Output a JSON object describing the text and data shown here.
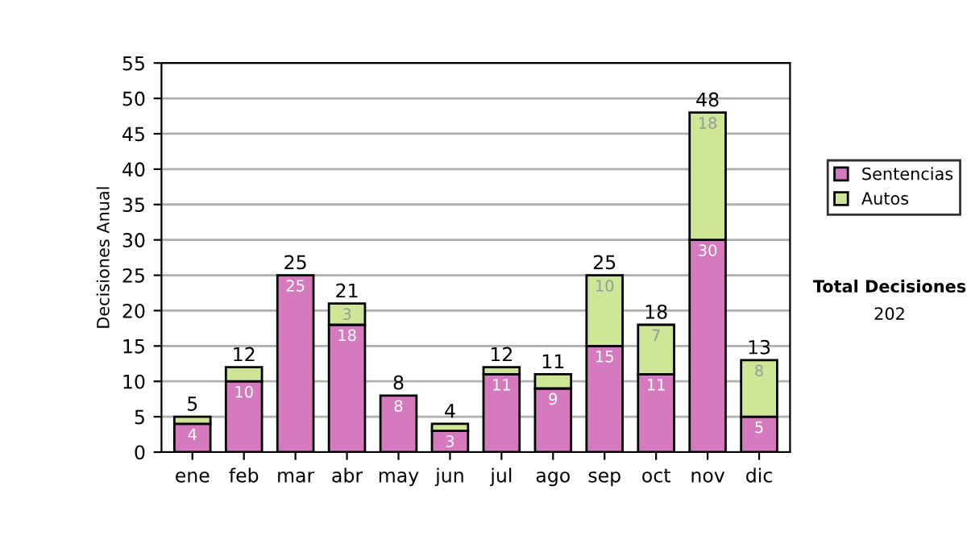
{
  "chart_data": {
    "type": "bar",
    "ylabel": "Decisiones Anual",
    "stacked": true,
    "categories": [
      "ene",
      "feb",
      "mar",
      "abr",
      "may",
      "jun",
      "jul",
      "ago",
      "sep",
      "oct",
      "nov",
      "dic"
    ],
    "series": [
      {
        "name": "Sentencias",
        "color": "#d67ac0",
        "values": [
          4,
          10,
          25,
          18,
          8,
          3,
          11,
          9,
          15,
          11,
          30,
          5
        ],
        "value_labels": [
          "4",
          "10",
          "25",
          "18",
          "8",
          "3",
          "11",
          "9",
          "15",
          "11",
          "30",
          "5"
        ]
      },
      {
        "name": "Autos",
        "color": "#cfe597",
        "values": [
          1,
          2,
          0,
          3,
          0,
          1,
          1,
          2,
          10,
          7,
          18,
          8
        ],
        "value_labels": [
          null,
          null,
          null,
          "3",
          null,
          null,
          null,
          null,
          "10",
          "7",
          "18",
          "8"
        ]
      }
    ],
    "totals": [
      "5",
      "12",
      "25",
      "21",
      "8",
      "4",
      "12",
      "11",
      "25",
      "18",
      "48",
      "13"
    ],
    "ylim": [
      0,
      55
    ],
    "yticks": [
      0,
      5,
      10,
      15,
      20,
      25,
      30,
      35,
      40,
      45,
      50,
      55
    ],
    "grid": "y",
    "legend": "right",
    "annotations": [
      "Total Decisiones",
      "202"
    ]
  }
}
